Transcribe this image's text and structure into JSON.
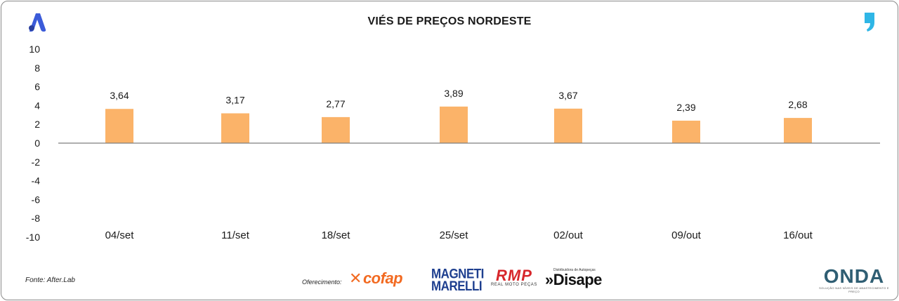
{
  "title": "VIÉS DE PREÇOS NORDESTE",
  "source": "Fonte: After.Lab",
  "sponsors": {
    "label": "Oferecimento:",
    "cofap": "cofap",
    "magneti_line1": "MAGNETI",
    "magneti_line2": "MARELLI",
    "rmp": "RMP",
    "rmp_sub": "REAL MOTO PEÇAS",
    "disape": "»Disape",
    "disape_sub": "Distribuidora de Autopeças",
    "onda": "ONDA",
    "onda_sub": "SOLUÇÃO NAS NÍVEIS DE ABASTECIMENTO E PREÇO"
  },
  "icons": {
    "left_brand": "app-logo-icon",
    "right_brand": "quote-mark-icon"
  },
  "colors": {
    "bar": "#FBB369",
    "axis": "#7f7f7f",
    "left_brand": "#3b5bd9",
    "right_brand": "#2fb6e6"
  },
  "chart_data": {
    "type": "bar",
    "title": "VIÉS DE PREÇOS NORDESTE",
    "categories": [
      "04/set",
      "11/set",
      "18/set",
      "25/set",
      "02/out",
      "09/out",
      "16/out"
    ],
    "values": [
      3.64,
      3.17,
      2.77,
      3.89,
      3.67,
      2.39,
      2.68
    ],
    "data_labels": [
      "3,64",
      "3,17",
      "2,77",
      "3,89",
      "3,67",
      "2,39",
      "2,68"
    ],
    "y_ticks": [
      "10",
      "8",
      "6",
      "4",
      "2",
      "0",
      "-2",
      "-4",
      "-6",
      "-8",
      "-10"
    ],
    "ylim": [
      -10,
      10
    ],
    "xlabel": "",
    "ylabel": "",
    "grid": false,
    "legend": "none"
  }
}
